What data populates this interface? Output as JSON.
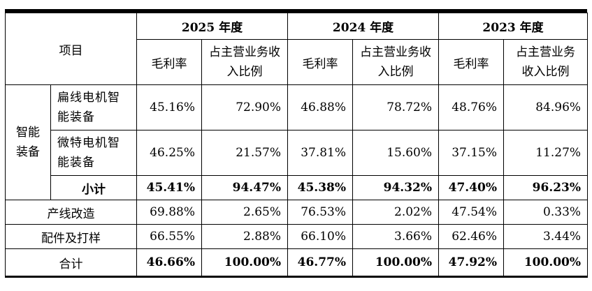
{
  "header": {
    "item": "项目",
    "years": [
      "2025 年度",
      "2024 年度",
      "2023 年度"
    ],
    "metric_gross_margin": "毛利率",
    "metric_share": "占主营业务收入比例"
  },
  "group": {
    "label": "智能装备"
  },
  "rows": {
    "flat_wire": {
      "label": "扁线电机智能装备",
      "values": [
        "45.16%",
        "72.90%",
        "46.88%",
        "78.72%",
        "48.76%",
        "84.96%"
      ]
    },
    "special_motor": {
      "label": "微特电机智能装备",
      "values": [
        "46.25%",
        "21.57%",
        "37.81%",
        "15.60%",
        "37.15%",
        "11.27%"
      ]
    },
    "subtotal": {
      "label": "小计",
      "values": [
        "45.41%",
        "94.47%",
        "45.38%",
        "94.32%",
        "47.40%",
        "96.23%"
      ]
    },
    "line_upgrade": {
      "label": "产线改造",
      "values": [
        "69.88%",
        "2.65%",
        "76.53%",
        "2.02%",
        "47.54%",
        "0.33%"
      ]
    },
    "parts": {
      "label": "配件及打样",
      "values": [
        "66.55%",
        "2.88%",
        "66.10%",
        "3.66%",
        "62.46%",
        "3.44%"
      ]
    },
    "total": {
      "label": "合计",
      "values": [
        "46.66%",
        "100.00%",
        "46.77%",
        "100.00%",
        "47.92%",
        "100.00%"
      ]
    }
  }
}
